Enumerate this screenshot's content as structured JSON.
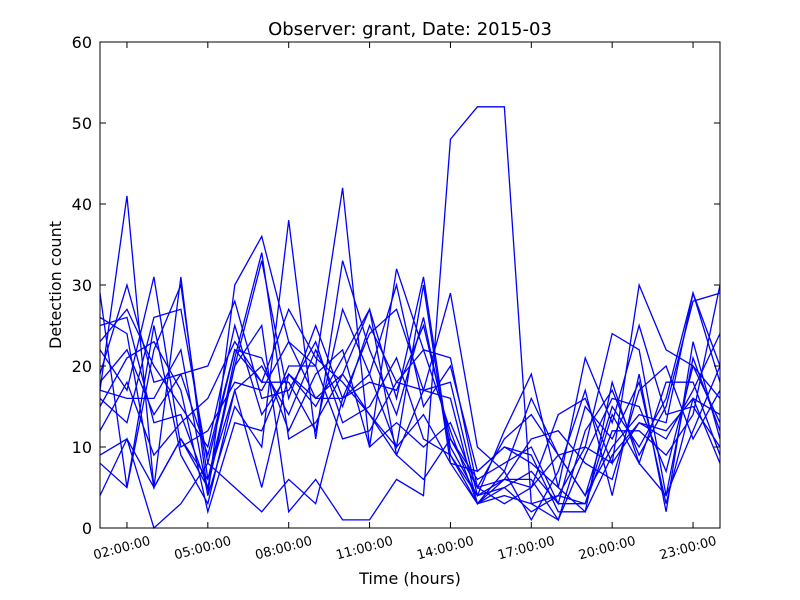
{
  "chart_data": {
    "type": "line",
    "title": "Observer: grant, Date: 2015-03",
    "xlabel": "Time (hours)",
    "ylabel": "Detection count",
    "xlim": [
      1,
      24
    ],
    "ylim": [
      0,
      60
    ],
    "xticks": [
      {
        "value": 2,
        "label": "02:00:00"
      },
      {
        "value": 5,
        "label": "05:00:00"
      },
      {
        "value": 8,
        "label": "08:00:00"
      },
      {
        "value": 11,
        "label": "11:00:00"
      },
      {
        "value": 14,
        "label": "14:00:00"
      },
      {
        "value": 17,
        "label": "17:00:00"
      },
      {
        "value": 20,
        "label": "20:00:00"
      },
      {
        "value": 23,
        "label": "23:00:00"
      }
    ],
    "yticks": [
      0,
      10,
      20,
      30,
      40,
      50,
      60
    ],
    "grid": false,
    "line_color": "#0000ff",
    "x": [
      1,
      2,
      3,
      4,
      5,
      6,
      7,
      8,
      9,
      10,
      11,
      12,
      13,
      14,
      15,
      16,
      17,
      18,
      19,
      20,
      21,
      22,
      23,
      24
    ],
    "series": [
      {
        "values": [
          29,
          5,
          22,
          30,
          6,
          20,
          25,
          2,
          6,
          1,
          1,
          6,
          4,
          48,
          52,
          52,
          3,
          1,
          12,
          17,
          9,
          15,
          28,
          29
        ]
      },
      {
        "values": [
          17,
          41,
          5,
          11,
          5,
          20,
          33,
          16,
          25,
          16,
          24,
          27,
          17,
          29,
          10,
          7,
          16,
          9,
          4,
          10,
          14,
          13,
          29,
          20
        ]
      },
      {
        "values": [
          9,
          11,
          5,
          31,
          4,
          15,
          10,
          38,
          11,
          33,
          22,
          14,
          26,
          10,
          4,
          5,
          7,
          3,
          3,
          12,
          12,
          9,
          14,
          30
        ]
      },
      {
        "values": [
          4,
          11,
          0,
          3,
          8,
          5,
          2,
          6,
          3,
          16,
          19,
          30,
          15,
          20,
          7,
          10,
          9,
          2,
          2,
          9,
          13,
          11,
          17,
          24
        ]
      },
      {
        "values": [
          17,
          16,
          16,
          22,
          4,
          30,
          36,
          23,
          20,
          42,
          10,
          32,
          22,
          21,
          5,
          11,
          14,
          9,
          10,
          8,
          13,
          12,
          16,
          8
        ]
      },
      {
        "values": [
          8,
          5,
          25,
          9,
          3,
          17,
          20,
          14,
          22,
          15,
          25,
          18,
          17,
          18,
          4,
          6,
          11,
          12,
          8,
          6,
          17,
          20,
          11,
          17
        ]
      },
      {
        "values": [
          25,
          26,
          13,
          14,
          5,
          21,
          34,
          11,
          13,
          19,
          27,
          9,
          6,
          11,
          5,
          3,
          5,
          14,
          16,
          8,
          30,
          22,
          20,
          13
        ]
      },
      {
        "values": [
          19,
          30,
          18,
          19,
          9,
          22,
          18,
          18,
          12,
          27,
          19,
          10,
          30,
          8,
          7,
          10,
          8,
          5,
          2,
          18,
          8,
          18,
          18,
          9
        ]
      },
      {
        "values": [
          22,
          17,
          31,
          10,
          12,
          18,
          17,
          23,
          16,
          19,
          14,
          9,
          17,
          16,
          3,
          5,
          2,
          4,
          10,
          24,
          22,
          4,
          21,
          12
        ]
      },
      {
        "values": [
          26,
          24,
          5,
          11,
          6,
          17,
          5,
          19,
          15,
          21,
          27,
          16,
          31,
          9,
          3,
          4,
          3,
          4,
          3,
          14,
          8,
          4,
          12,
          20
        ]
      },
      {
        "values": [
          16,
          13,
          26,
          27,
          8,
          22,
          21,
          12,
          19,
          22,
          10,
          13,
          10,
          13,
          5,
          6,
          5,
          9,
          4,
          15,
          10,
          16,
          29,
          18
        ]
      },
      {
        "values": [
          15,
          21,
          23,
          17,
          2,
          13,
          12,
          20,
          20,
          11,
          12,
          18,
          22,
          12,
          3,
          7,
          1,
          7,
          17,
          4,
          19,
          2,
          23,
          11
        ]
      },
      {
        "values": [
          18,
          22,
          14,
          19,
          20,
          28,
          16,
          17,
          23,
          13,
          15,
          21,
          11,
          9,
          4,
          12,
          19,
          5,
          21,
          13,
          25,
          14,
          15,
          10
        ]
      },
      {
        "values": [
          23,
          27,
          20,
          15,
          10,
          25,
          14,
          19,
          16,
          16,
          18,
          17,
          25,
          11,
          6,
          8,
          10,
          3,
          15,
          11,
          18,
          3,
          16,
          14
        ]
      },
      {
        "values": [
          12,
          18,
          9,
          13,
          16,
          23,
          18,
          27,
          21,
          18,
          14,
          10,
          14,
          8,
          3,
          6,
          6,
          1,
          9,
          16,
          15,
          7,
          20,
          16
        ]
      }
    ]
  }
}
